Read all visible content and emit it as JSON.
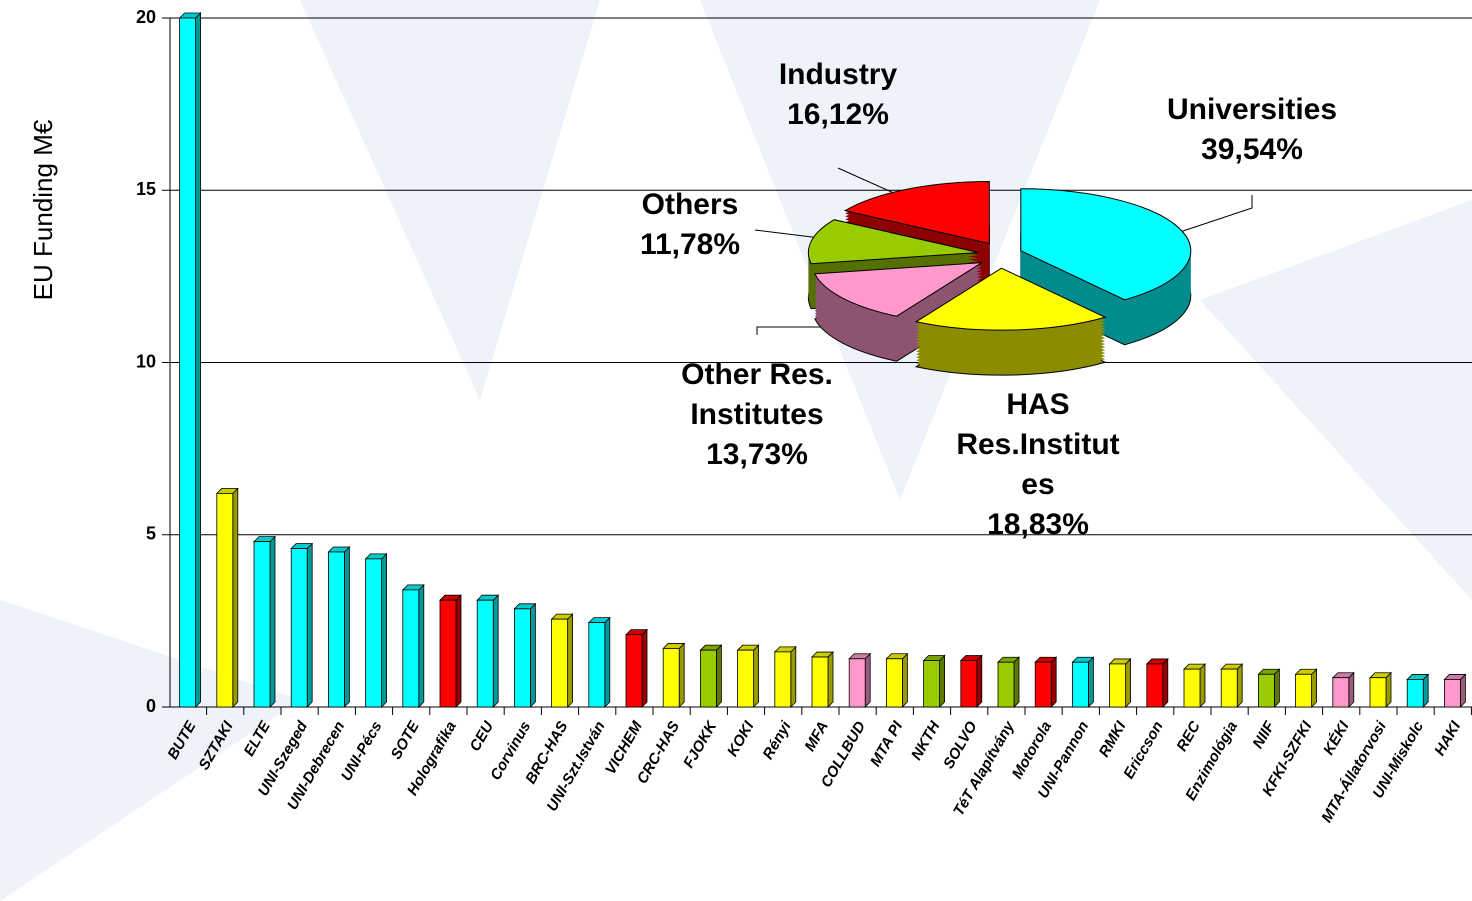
{
  "chart_data": [
    {
      "type": "bar",
      "y_label": "EU Funding M€",
      "categories": [
        "BUTE",
        "SZTAKI",
        "ELTE",
        "UNI-Szeged",
        "UNI-Debrecen",
        "UNI-Pécs",
        "SOTE",
        "Holografika",
        "CEU",
        "Corvinus",
        "BRC-HAS",
        "UNI-Szt.István",
        "VICHEM",
        "CRC-HAS",
        "FJOKK",
        "KOKI",
        "Rényi",
        "MFA",
        "COLLBUD",
        "MTA PI",
        "NKTH",
        "SOLVO",
        "TéT Alapítvány",
        "Motorola",
        "UNI-Pannon",
        "RMKI",
        "Ericcson",
        "REC",
        "Enzimológia",
        "NIIF",
        "KFKI-SZFKI",
        "KÉKI",
        "MTA-Állatorvosi",
        "UNI-Miskolc",
        "HAKI"
      ],
      "values": [
        20,
        6.2,
        4.8,
        4.6,
        4.5,
        4.3,
        3.4,
        3.1,
        3.1,
        2.85,
        2.55,
        2.45,
        2.1,
        1.7,
        1.65,
        1.65,
        1.6,
        1.45,
        1.4,
        1.4,
        1.35,
        1.35,
        1.3,
        1.3,
        1.3,
        1.25,
        1.25,
        1.1,
        1.1,
        0.95,
        0.95,
        0.85,
        0.85,
        0.8,
        0.8
      ],
      "colors": [
        "#00ffff",
        "#ffff00",
        "#00ffff",
        "#00ffff",
        "#00ffff",
        "#00ffff",
        "#00ffff",
        "#ff0000",
        "#00ffff",
        "#00ffff",
        "#ffff00",
        "#00ffff",
        "#ff0000",
        "#ffff00",
        "#99cc00",
        "#ffff00",
        "#ffff00",
        "#ffff00",
        "#ff99cc",
        "#ffff00",
        "#99cc00",
        "#ff0000",
        "#99cc00",
        "#ff0000",
        "#00ffff",
        "#ffff00",
        "#ff0000",
        "#ffff00",
        "#ffff00",
        "#99cc00",
        "#ffff00",
        "#ff99cc",
        "#ffff00",
        "#00ffff",
        "#ff99cc"
      ],
      "ylim": [
        0,
        20
      ],
      "yticks": [
        0,
        5,
        10,
        15,
        20
      ],
      "grid": true
    },
    {
      "type": "pie",
      "categories": [
        "Universities",
        "HAS\nRes.Institut\nes",
        "Other Res.\nInstitutes",
        "Others",
        "Industry"
      ],
      "values": [
        39.54,
        18.83,
        13.73,
        11.78,
        16.12
      ],
      "value_labels": [
        "39,54%",
        "18,83%",
        "13,73%",
        "11,78%",
        "16,12%"
      ],
      "colors": [
        "#00ffff",
        "#ffff00",
        "#ff99cc",
        "#99cc00",
        "#ff0000"
      ]
    }
  ]
}
